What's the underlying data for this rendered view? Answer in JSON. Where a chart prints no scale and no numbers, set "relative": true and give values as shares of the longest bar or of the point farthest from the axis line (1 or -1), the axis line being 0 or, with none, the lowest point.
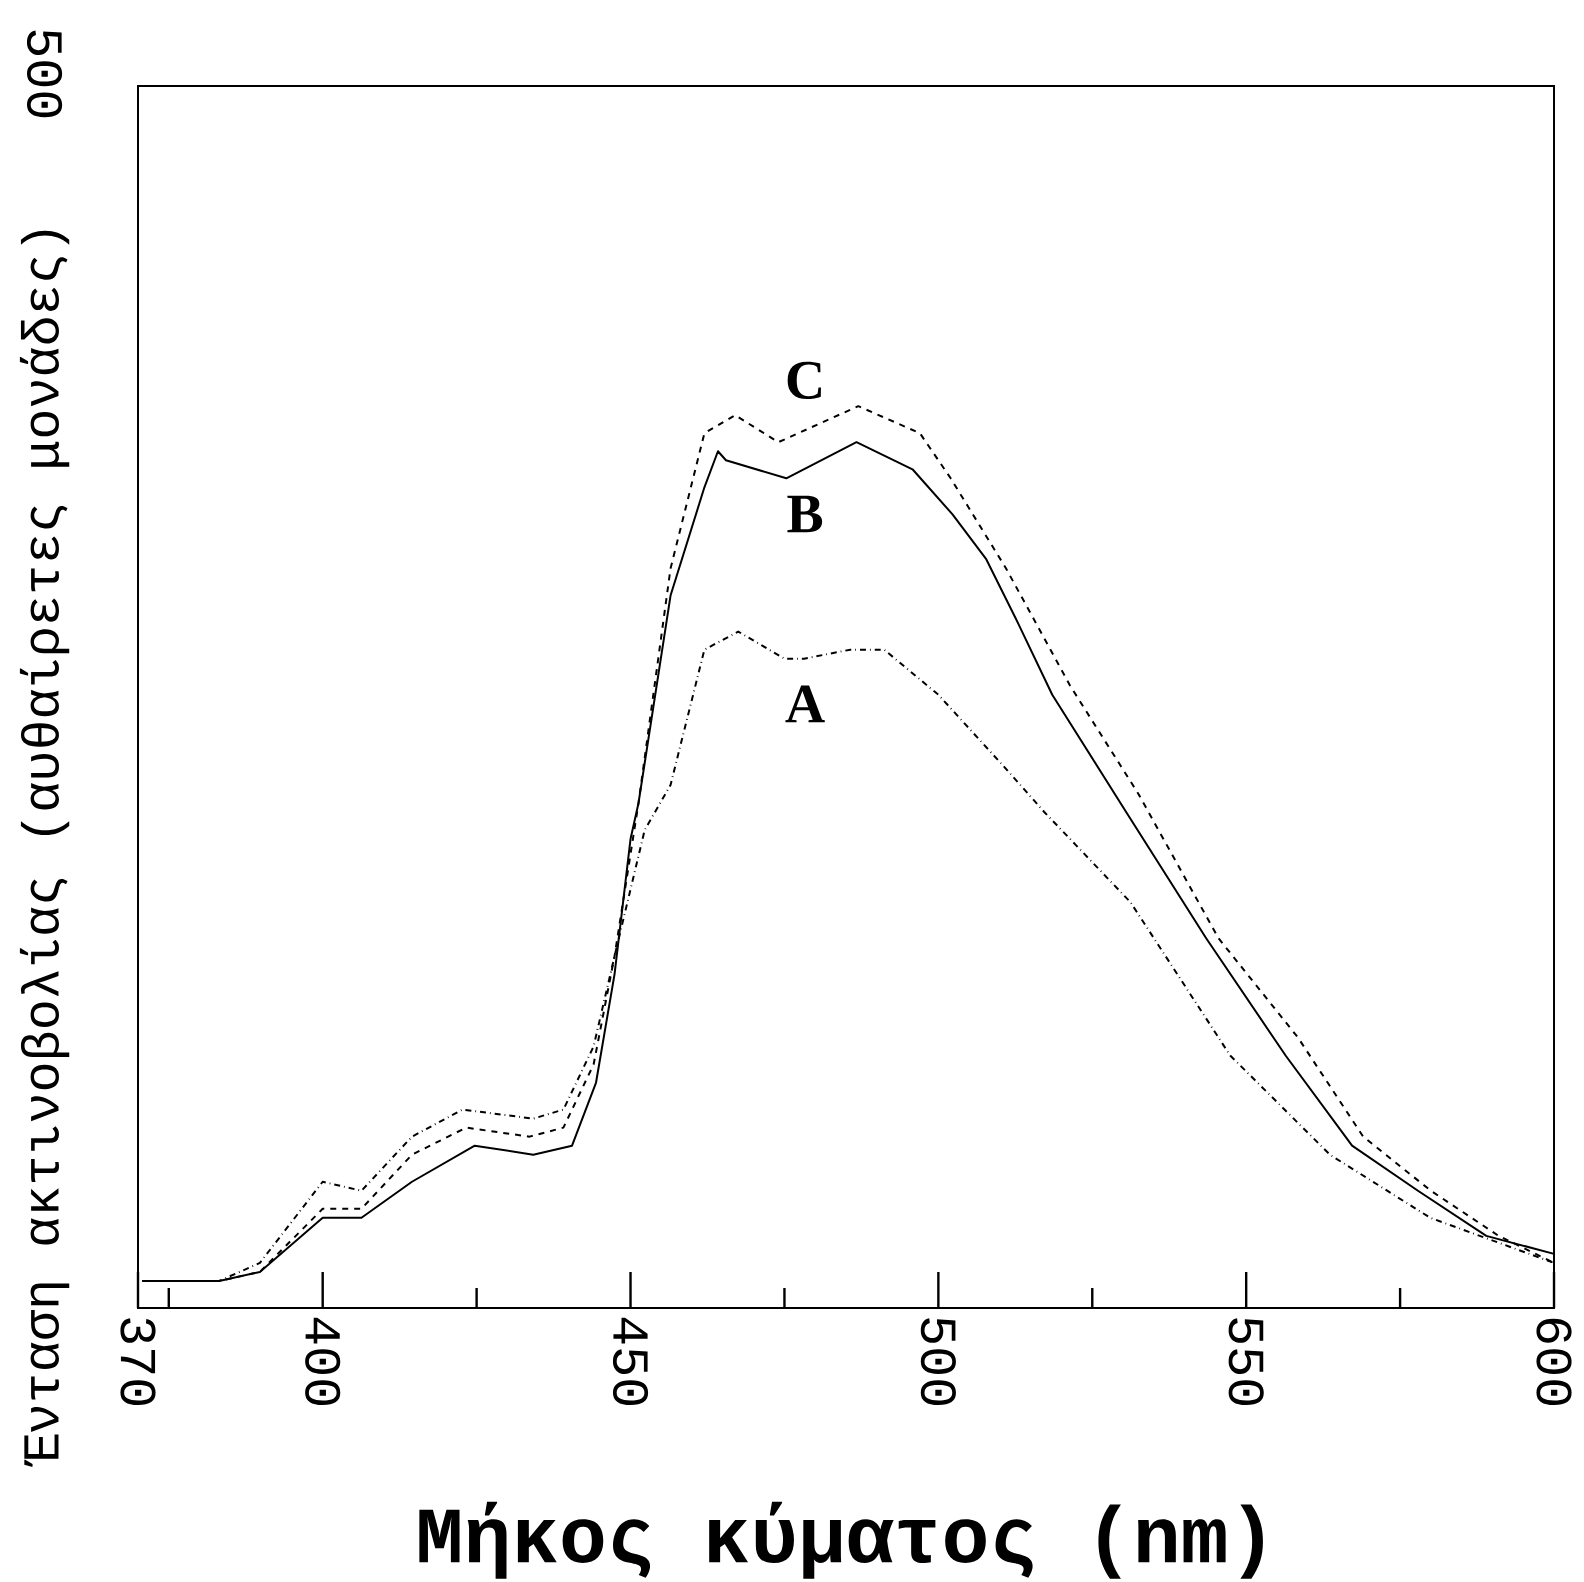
{
  "chart_data": {
    "type": "line",
    "xlabel": "Μήκος κύματος (nm)",
    "ylabel": "Ένταση ακτινοβολίας (αυθαίρετες μονάδες)",
    "relative": true,
    "xlim": [
      370,
      600
    ],
    "xticks": [
      370,
      {
        "value": 375,
        "label": null
      },
      400,
      {
        "value": 425,
        "label": null
      },
      450,
      {
        "value": 475,
        "label": null
      },
      500,
      {
        "value": 525,
        "label": null
      },
      550,
      {
        "value": 575,
        "label": null
      },
      600
    ],
    "annotations": [
      "500"
    ],
    "series": [
      {
        "name": "A",
        "color": "#000000",
        "line_style": "dashdot",
        "x": [
          370.7,
          383.2,
          389.8,
          400,
          406.3,
          414.5,
          422.7,
          434.2,
          439.1,
          444,
          447.4,
          452.3,
          456.5,
          462,
          467.5,
          475,
          478.2,
          485.7,
          491.2,
          500,
          510.7,
          517.2,
          531.2,
          547.4,
          563.6,
          579.9,
          600
        ],
        "values": [
          0.03,
          0.03,
          0.05,
          0.14,
          0.13,
          0.19,
          0.22,
          0.21,
          0.22,
          0.29,
          0.39,
          0.53,
          0.58,
          0.73,
          0.75,
          0.72,
          0.72,
          0.73,
          0.73,
          0.68,
          0.6,
          0.55,
          0.45,
          0.28,
          0.17,
          0.1,
          0.05
        ]
      },
      {
        "name": "B",
        "color": "#000000",
        "line_style": "solid",
        "x": [
          370.7,
          383.2,
          389.8,
          400,
          406.3,
          414.5,
          424.7,
          434.2,
          440.5,
          444.4,
          447.4,
          450,
          451.3,
          456.5,
          462,
          464.2,
          465.5,
          475.3,
          486.7,
          495.8,
          502.3,
          507.8,
          512.9,
          518.5,
          530.5,
          543.5,
          556.4,
          567.2,
          577.9,
          589,
          600
        ],
        "values": [
          0.03,
          0.03,
          0.04,
          0.1,
          0.1,
          0.14,
          0.18,
          0.17,
          0.18,
          0.25,
          0.37,
          0.52,
          0.56,
          0.79,
          0.91,
          0.95,
          0.94,
          0.92,
          0.96,
          0.93,
          0.88,
          0.83,
          0.76,
          0.68,
          0.55,
          0.41,
          0.28,
          0.18,
          0.13,
          0.08,
          0.06
        ]
      },
      {
        "name": "C",
        "color": "#000000",
        "line_style": "dashed",
        "x": [
          370.7,
          383.2,
          389.8,
          400,
          406.3,
          414.5,
          423.3,
          433.6,
          439.1,
          444,
          447.4,
          451.3,
          456.5,
          462,
          467,
          474,
          487,
          497,
          502,
          506.5,
          511,
          521.4,
          532.5,
          545.5,
          558.4,
          569,
          580,
          591,
          600
        ],
        "values": [
          0.03,
          0.03,
          0.04,
          0.11,
          0.11,
          0.17,
          0.2,
          0.19,
          0.2,
          0.27,
          0.39,
          0.56,
          0.82,
          0.97,
          0.99,
          0.96,
          1.0,
          0.97,
          0.92,
          0.87,
          0.82,
          0.69,
          0.57,
          0.41,
          0.3,
          0.19,
          0.13,
          0.08,
          0.05
        ]
      }
    ]
  }
}
